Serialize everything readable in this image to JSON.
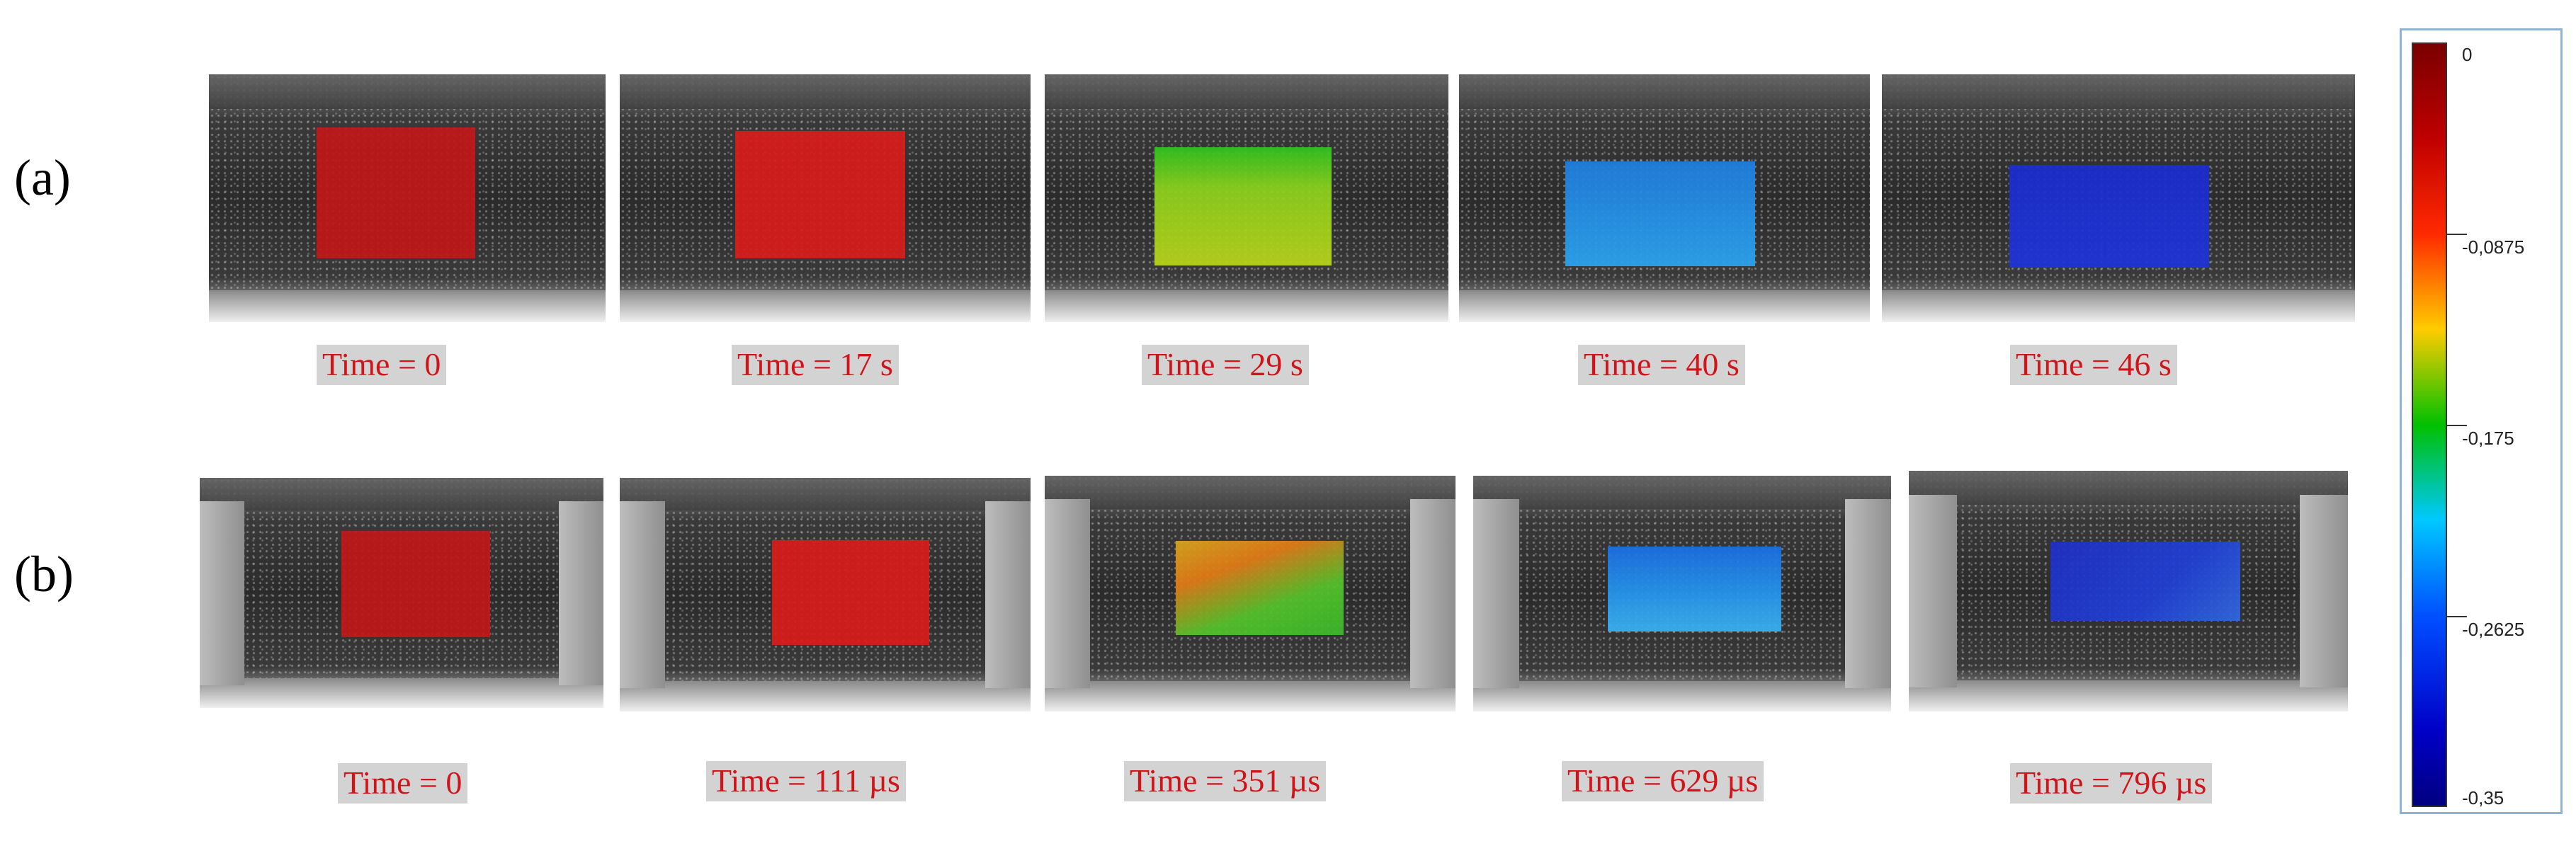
{
  "rows": {
    "a": {
      "label": "(a)",
      "captions": [
        "Time = 0",
        "Time = 17 s",
        "Time = 29 s",
        "Time = 40 s",
        "Time = 46 s"
      ]
    },
    "b": {
      "label": "(b)",
      "captions": [
        "Time = 0",
        "Time = 111 µs",
        "Time = 351 µs",
        "Time = 629 µs",
        "Time = 796 µs"
      ]
    }
  },
  "colorbar": {
    "ticks": [
      "0",
      "-0,0875",
      "-0,175",
      "-0,2625",
      "-0,35"
    ],
    "colors": [
      "#7a0000",
      "#ff2a00",
      "#ffcc00",
      "#00c000",
      "#00c8ff",
      "#0050ff",
      "#000080"
    ]
  },
  "colors": {
    "caption_text": "#d0141a",
    "caption_bg": "#d3d3d3"
  }
}
